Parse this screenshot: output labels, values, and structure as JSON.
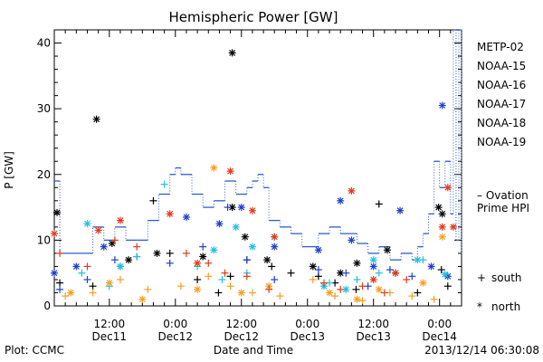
{
  "chart_data": {
    "type": "scatter",
    "title": "Hemispheric Power [GW]",
    "ylabel": "P [GW]",
    "xlabel": "Date and Time",
    "ylim": [
      0,
      42
    ],
    "xlim": [
      "2013-12-11T02:00",
      "2013-12-14T04:00"
    ],
    "yticks": [
      0,
      10,
      20,
      30,
      40
    ],
    "xticks": [
      {
        "label": "12:00",
        "sublabel": "Dec11",
        "x": "2013-12-11T12:00"
      },
      {
        "label": "0:00",
        "sublabel": "Dec12",
        "x": "2013-12-12T00:00"
      },
      {
        "label": "12:00",
        "sublabel": "Dec12",
        "x": "2013-12-12T12:00"
      },
      {
        "label": "0:00",
        "sublabel": "Dec13",
        "x": "2013-12-13T00:00"
      },
      {
        "label": "12:00",
        "sublabel": "Dec13",
        "x": "2013-12-13T12:00"
      },
      {
        "label": "0:00",
        "sublabel": "Dec14",
        "x": "2013-12-14T00:00"
      }
    ],
    "legend_placement": "right",
    "series": [
      {
        "name": "METP-02",
        "color": "#000000",
        "north": [
          [
            "2013-12-11T02:30",
            14.2
          ],
          [
            "2013-12-11T09:40",
            28.4
          ],
          [
            "2013-12-11T12:30",
            9.5
          ],
          [
            "2013-12-11T15:30",
            7.0
          ],
          [
            "2013-12-11T20:40",
            8.0
          ],
          [
            "2013-12-12T05:00",
            7.5
          ],
          [
            "2013-12-12T10:20",
            15.0
          ],
          [
            "2013-12-12T10:20",
            38.5
          ],
          [
            "2013-12-12T12:40",
            10.5
          ],
          [
            "2013-12-12T16:40",
            7.0
          ],
          [
            "2013-12-13T01:00",
            6.0
          ],
          [
            "2013-12-13T06:00",
            5.0
          ],
          [
            "2013-12-13T09:00",
            6.5
          ],
          [
            "2013-12-13T14:30",
            8.5
          ],
          [
            "2013-12-13T23:50",
            15.0
          ],
          [
            "2013-12-14T00:30",
            14.0
          ]
        ],
        "south": [
          [
            "2013-12-11T03:00",
            3.5
          ],
          [
            "2013-12-11T09:00",
            3.0
          ],
          [
            "2013-12-11T14:00",
            6.0
          ],
          [
            "2013-12-11T20:00",
            16.0
          ],
          [
            "2013-12-11T23:00",
            8.0
          ],
          [
            "2013-12-12T04:00",
            4.0
          ],
          [
            "2013-12-12T07:50",
            2.0
          ],
          [
            "2013-12-12T10:00",
            4.5
          ],
          [
            "2013-12-12T13:00",
            7.0
          ],
          [
            "2013-12-12T17:30",
            6.0
          ],
          [
            "2013-12-12T21:00",
            5.0
          ],
          [
            "2013-12-13T02:00",
            4.5
          ],
          [
            "2013-12-13T05:00",
            3.5
          ],
          [
            "2013-12-13T08:50",
            2.5
          ],
          [
            "2013-12-13T13:00",
            15.5
          ],
          [
            "2013-12-13T16:00",
            5.0
          ],
          [
            "2013-12-13T20:00",
            2.0
          ],
          [
            "2013-12-14T00:20",
            5.5
          ],
          [
            "2013-12-14T01:30",
            3.0
          ]
        ]
      },
      {
        "name": "NOAA-15",
        "color": "#1f3fcf",
        "north": [
          [
            "2013-12-11T02:00",
            5.0
          ],
          [
            "2013-12-11T06:00",
            6.0
          ],
          [
            "2013-12-11T11:00",
            9.0
          ],
          [
            "2013-12-12T02:00",
            13.5
          ],
          [
            "2013-12-12T08:00",
            12.5
          ],
          [
            "2013-12-12T12:00",
            15.0
          ],
          [
            "2013-12-12T18:00",
            9.0
          ],
          [
            "2013-12-13T02:00",
            8.5
          ],
          [
            "2013-12-13T06:00",
            16.0
          ],
          [
            "2013-12-13T08:00",
            10.0
          ],
          [
            "2013-12-13T12:00",
            6.0
          ],
          [
            "2013-12-13T16:50",
            14.5
          ],
          [
            "2013-12-13T22:30",
            6.0
          ],
          [
            "2013-12-14T00:30",
            30.5
          ],
          [
            "2013-12-14T01:30",
            4.5
          ]
        ],
        "south": [
          [
            "2013-12-11T03:00",
            2.5
          ],
          [
            "2013-12-11T08:00",
            4.0
          ],
          [
            "2013-12-11T13:00",
            7.0
          ],
          [
            "2013-12-11T17:00",
            7.5
          ],
          [
            "2013-12-11T23:00",
            6.5
          ],
          [
            "2013-12-12T05:00",
            9.0
          ],
          [
            "2013-12-12T09:30",
            15.0
          ],
          [
            "2013-12-12T13:00",
            7.0
          ],
          [
            "2013-12-12T18:00",
            4.0
          ],
          [
            "2013-12-13T02:00",
            5.5
          ],
          [
            "2013-12-13T07:00",
            5.0
          ],
          [
            "2013-12-13T11:00",
            3.0
          ],
          [
            "2013-12-13T15:00",
            5.5
          ],
          [
            "2013-12-13T19:00",
            4.5
          ]
        ]
      },
      {
        "name": "NOAA-16",
        "color": "#20c0e0",
        "north": [
          [
            "2013-12-11T08:00",
            12.5
          ],
          [
            "2013-12-11T14:00",
            6.0
          ],
          [
            "2013-12-12T07:00",
            8.5
          ],
          [
            "2013-12-12T11:00",
            12.0
          ],
          [
            "2013-12-12T14:00",
            9.0
          ],
          [
            "2013-12-12T18:00",
            10.5
          ],
          [
            "2013-12-13T03:00",
            3.0
          ],
          [
            "2013-12-13T07:00",
            2.5
          ],
          [
            "2013-12-13T12:00",
            7.0
          ],
          [
            "2013-12-13T20:00",
            7.0
          ],
          [
            "2013-12-14T01:00",
            4.8
          ]
        ],
        "south": [
          [
            "2013-12-11T07:00",
            5.0
          ],
          [
            "2013-12-11T12:00",
            3.0
          ],
          [
            "2013-12-11T17:00",
            7.5
          ],
          [
            "2013-12-11T22:00",
            18.5
          ],
          [
            "2013-12-12T04:00",
            6.0
          ],
          [
            "2013-12-12T08:30",
            4.0
          ],
          [
            "2013-12-12T13:00",
            5.0
          ],
          [
            "2013-12-13T04:00",
            3.5
          ],
          [
            "2013-12-13T09:00",
            4.0
          ],
          [
            "2013-12-13T13:00",
            5.0
          ],
          [
            "2013-12-13T21:00",
            7.0
          ]
        ]
      },
      {
        "name": "NOAA-17",
        "color": "#22dd77",
        "north": [],
        "south": []
      },
      {
        "name": "NOAA-18",
        "color": "#f5a020",
        "north": [
          [
            "2013-12-11T05:00",
            2.0
          ],
          [
            "2013-12-11T12:00",
            3.5
          ],
          [
            "2013-12-11T18:00",
            1.0
          ],
          [
            "2013-12-12T04:00",
            2.5
          ],
          [
            "2013-12-12T07:00",
            21.0
          ],
          [
            "2013-12-12T12:00",
            2.0
          ],
          [
            "2013-12-12T17:00",
            3.0
          ],
          [
            "2013-12-13T04:00",
            2.0
          ],
          [
            "2013-12-13T09:00",
            1.0
          ],
          [
            "2013-12-13T13:00",
            2.5
          ],
          [
            "2013-12-13T21:00",
            3.5
          ],
          [
            "2013-12-14T00:30",
            10.5
          ]
        ],
        "south": [
          [
            "2013-12-11T04:00",
            1.5
          ],
          [
            "2013-12-11T09:00",
            2.0
          ],
          [
            "2013-12-11T14:00",
            4.0
          ],
          [
            "2013-12-11T19:00",
            2.5
          ],
          [
            "2013-12-12T01:00",
            3.0
          ],
          [
            "2013-12-12T06:00",
            4.5
          ],
          [
            "2013-12-12T10:00",
            3.0
          ],
          [
            "2013-12-12T14:00",
            2.0
          ],
          [
            "2013-12-12T19:00",
            1.5
          ],
          [
            "2013-12-13T01:00",
            4.0
          ],
          [
            "2013-12-13T05:00",
            1.5
          ],
          [
            "2013-12-13T10:00",
            0.8
          ],
          [
            "2013-12-13T15:00",
            2.0
          ],
          [
            "2013-12-13T19:00",
            1.5
          ],
          [
            "2013-12-13T23:00",
            1.0
          ]
        ]
      },
      {
        "name": "NOAA-19",
        "color": "#e03a1a",
        "north": [
          [
            "2013-12-11T02:00",
            11.0
          ],
          [
            "2013-12-11T10:00",
            11.5
          ],
          [
            "2013-12-11T14:00",
            13.0
          ],
          [
            "2013-12-11T23:00",
            14.0
          ],
          [
            "2013-12-12T04:00",
            6.5
          ],
          [
            "2013-12-12T10:00",
            20.5
          ],
          [
            "2013-12-12T14:00",
            14.5
          ],
          [
            "2013-12-12T18:00",
            10.5
          ],
          [
            "2013-12-13T08:00",
            17.5
          ],
          [
            "2013-12-13T12:00",
            4.0
          ],
          [
            "2013-12-13T16:00",
            5.0
          ],
          [
            "2013-12-14T00:30",
            12.0
          ],
          [
            "2013-12-14T01:30",
            18.0
          ],
          [
            "2013-12-14T02:30",
            12.0
          ]
        ],
        "south": [
          [
            "2013-12-11T03:00",
            8.0
          ],
          [
            "2013-12-11T08:00",
            6.0
          ],
          [
            "2013-12-11T13:00",
            10.0
          ],
          [
            "2013-12-11T17:00",
            9.0
          ],
          [
            "2013-12-12T02:00",
            8.0
          ],
          [
            "2013-12-12T06:00",
            6.5
          ],
          [
            "2013-12-12T09:00",
            5.0
          ],
          [
            "2013-12-12T13:00",
            4.5
          ],
          [
            "2013-12-12T17:00",
            2.5
          ],
          [
            "2013-12-13T03:00",
            3.5
          ],
          [
            "2013-12-13T06:00",
            2.5
          ],
          [
            "2013-12-13T10:00",
            3.0
          ],
          [
            "2013-12-13T14:00",
            2.0
          ],
          [
            "2013-12-13T18:00",
            4.0
          ]
        ]
      }
    ],
    "ovation": {
      "name": "Ovation Prime HPI",
      "label": "– Ovation\nPrime HPI",
      "color": "#2a60c8",
      "values": [
        [
          "2013-12-11T02:00",
          19.0
        ],
        [
          "2013-12-11T03:00",
          8.0
        ],
        [
          "2013-12-11T08:00",
          8.0
        ],
        [
          "2013-12-11T09:00",
          12.0
        ],
        [
          "2013-12-11T11:00",
          10.0
        ],
        [
          "2013-12-11T13:00",
          12.0
        ],
        [
          "2013-12-11T15:00",
          10.0
        ],
        [
          "2013-12-11T17:00",
          10.0
        ],
        [
          "2013-12-11T19:00",
          13.0
        ],
        [
          "2013-12-11T21:00",
          17.0
        ],
        [
          "2013-12-11T23:00",
          20.0
        ],
        [
          "2013-12-12T00:00",
          21.0
        ],
        [
          "2013-12-12T01:00",
          20.0
        ],
        [
          "2013-12-12T03:00",
          17.0
        ],
        [
          "2013-12-12T05:00",
          15.0
        ],
        [
          "2013-12-12T07:00",
          16.0
        ],
        [
          "2013-12-12T09:00",
          19.0
        ],
        [
          "2013-12-12T11:00",
          17.0
        ],
        [
          "2013-12-12T13:00",
          18.0
        ],
        [
          "2013-12-12T14:00",
          19.0
        ],
        [
          "2013-12-12T15:00",
          20.0
        ],
        [
          "2013-12-12T16:00",
          18.0
        ],
        [
          "2013-12-12T17:00",
          13.0
        ],
        [
          "2013-12-12T19:00",
          12.0
        ],
        [
          "2013-12-12T21:00",
          11.0
        ],
        [
          "2013-12-12T23:00",
          9.0
        ],
        [
          "2013-12-13T02:00",
          11.0
        ],
        [
          "2013-12-13T04:00",
          12.0
        ],
        [
          "2013-12-13T06:00",
          11.0
        ],
        [
          "2013-12-13T09:00",
          9.5
        ],
        [
          "2013-12-13T11:00",
          8.0
        ],
        [
          "2013-12-13T13:00",
          9.0
        ],
        [
          "2013-12-13T15:00",
          7.0
        ],
        [
          "2013-12-13T17:00",
          8.0
        ],
        [
          "2013-12-13T19:00",
          7.0
        ],
        [
          "2013-12-13T20:00",
          9.0
        ],
        [
          "2013-12-13T21:00",
          11.0
        ],
        [
          "2013-12-13T22:00",
          14.0
        ],
        [
          "2013-12-13T23:00",
          22.0
        ],
        [
          "2013-12-14T00:00",
          18.0
        ],
        [
          "2013-12-14T01:00",
          22.0
        ],
        [
          "2013-12-14T02:00",
          14.0
        ],
        [
          "2013-12-14T02:30",
          42.0
        ],
        [
          "2013-12-14T03:00",
          10.0
        ],
        [
          "2013-12-14T03:30",
          42.0
        ],
        [
          "2013-12-14T04:00",
          8.0
        ]
      ]
    },
    "symbol_legend": {
      "south_symbol": "+",
      "south_label": "south",
      "north_symbol": "*",
      "north_label": "north"
    }
  },
  "footer": {
    "left": "Plot: CCMC",
    "right": "2013/12/14 06:30:08"
  }
}
